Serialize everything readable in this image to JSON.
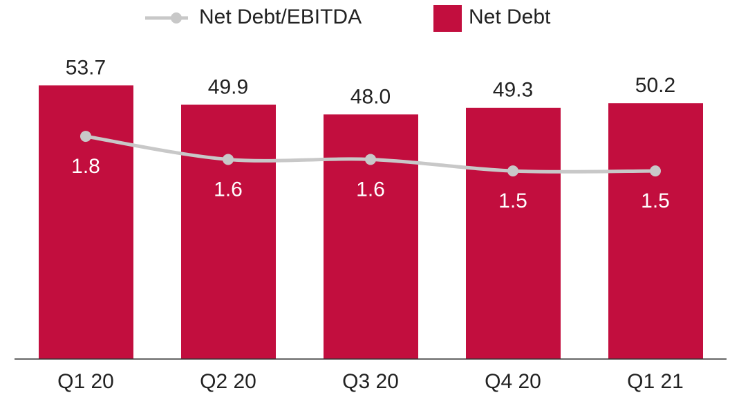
{
  "chart_data": {
    "type": "bar",
    "categories": [
      "Q1 20",
      "Q2 20",
      "Q3 20",
      "Q4 20",
      "Q1 21"
    ],
    "series": [
      {
        "name": "Net Debt",
        "type": "bar",
        "color": "#c20e3e",
        "values": [
          53.7,
          49.9,
          48.0,
          49.3,
          50.2
        ],
        "value_labels": [
          "53.7",
          "49.9",
          "48.0",
          "49.3",
          "50.2"
        ]
      },
      {
        "name": "Net Debt/EBITDA",
        "type": "line",
        "axis": "y2",
        "color": "#c8c8c8",
        "values": [
          1.8,
          1.6,
          1.6,
          1.5,
          1.5
        ]
      }
    ],
    "ylim": [
      0,
      60
    ],
    "y2lim": [
      -0.13,
      2.52
    ]
  }
}
